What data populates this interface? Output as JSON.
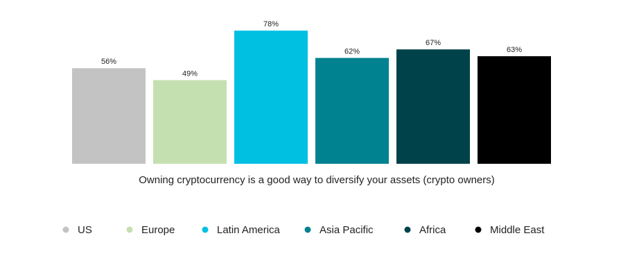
{
  "chart_data": {
    "type": "bar",
    "categories": [
      "Owning cryptocurrency is a good way to diversify your assets (crypto owners)"
    ],
    "series": [
      {
        "name": "US",
        "color": "#c3c3c3",
        "values": [
          56
        ],
        "value_labels": [
          "56%"
        ]
      },
      {
        "name": "Europe",
        "color": "#c5e0b0",
        "values": [
          49
        ],
        "value_labels": [
          "49%"
        ]
      },
      {
        "name": "Latin America",
        "color": "#00c0e2",
        "values": [
          78
        ],
        "value_labels": [
          "78%"
        ]
      },
      {
        "name": "Asia Pacific",
        "color": "#008290",
        "values": [
          62
        ],
        "value_labels": [
          "62%"
        ]
      },
      {
        "name": "Africa",
        "color": "#00424a",
        "values": [
          67
        ],
        "value_labels": [
          "67%"
        ]
      },
      {
        "name": "Middle East",
        "color": "#000000",
        "values": [
          63
        ],
        "value_labels": [
          "63%"
        ]
      }
    ]
  }
}
